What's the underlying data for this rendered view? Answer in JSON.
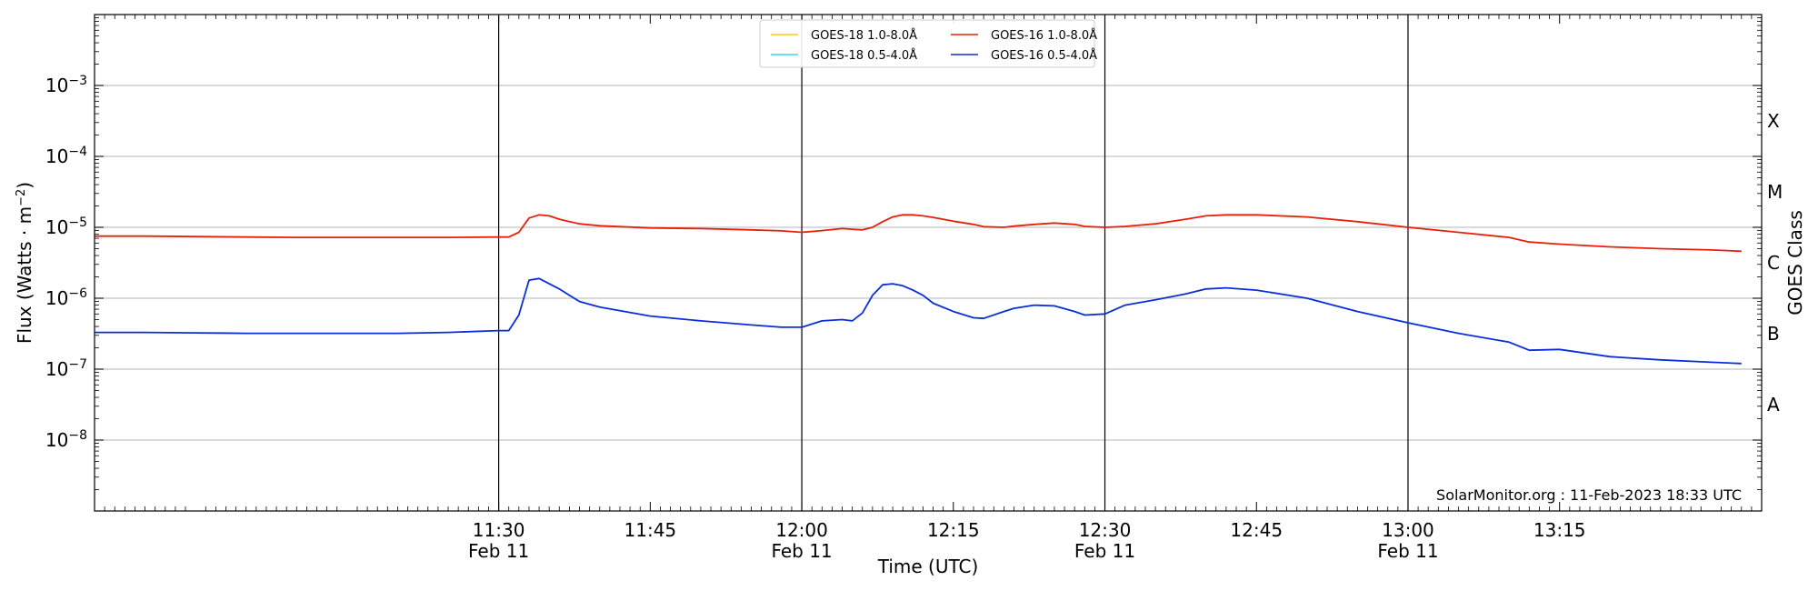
{
  "chart_data": {
    "type": "line",
    "xlabel": "Time (UTC)",
    "ylabel_prefix": "Flux (Watts · m",
    "ylabel_exp": "−2",
    "ylabel_suffix": ")",
    "right_label": "GOES Class",
    "credit": "SolarMonitor.org : 11-Feb-2023 18:33 UTC",
    "y_scale": "log",
    "ylim": [
      1e-09,
      0.01
    ],
    "x_range_minutes": [
      650,
      815
    ],
    "x_ticks": [
      {
        "t": 690,
        "time": "11:30",
        "date": "Feb 11"
      },
      {
        "t": 705,
        "time": "11:45",
        "date": ""
      },
      {
        "t": 720,
        "time": "12:00",
        "date": "Feb 11"
      },
      {
        "t": 735,
        "time": "12:15",
        "date": ""
      },
      {
        "t": 750,
        "time": "12:30",
        "date": "Feb 11"
      },
      {
        "t": 765,
        "time": "12:45",
        "date": ""
      },
      {
        "t": 780,
        "time": "13:00",
        "date": "Feb 11"
      },
      {
        "t": 795,
        "time": "13:15",
        "date": ""
      }
    ],
    "vertical_lines_at": [
      690,
      720,
      750,
      780
    ],
    "y_ticks": [
      {
        "exp": -8,
        "label": "10",
        "sup": "−8"
      },
      {
        "exp": -7,
        "label": "10",
        "sup": "−7"
      },
      {
        "exp": -6,
        "label": "10",
        "sup": "−6"
      },
      {
        "exp": -5,
        "label": "10",
        "sup": "−5"
      },
      {
        "exp": -4,
        "label": "10",
        "sup": "−4"
      },
      {
        "exp": -3,
        "label": "10",
        "sup": "−3"
      }
    ],
    "goes_classes": [
      {
        "label": "A",
        "exp": -7.5
      },
      {
        "label": "B",
        "exp": -6.5
      },
      {
        "label": "C",
        "exp": -5.5
      },
      {
        "label": "M",
        "exp": -4.5
      },
      {
        "label": "X",
        "exp": -3.5
      }
    ],
    "grid": true,
    "legend_position": "top-center",
    "series": [
      {
        "name": "GOES-18 1.0-8.0Å",
        "color": "#f5d000",
        "x": [],
        "y": []
      },
      {
        "name": "GOES-18 0.5-4.0Å",
        "color": "#33d6f5",
        "x": [],
        "y": []
      },
      {
        "name": "GOES-16 1.0-8.0Å",
        "color": "#e8200a",
        "x": [
          650,
          655,
          660,
          665,
          670,
          675,
          680,
          685,
          690,
          691,
          692,
          693,
          694,
          695,
          696,
          697,
          698,
          700,
          705,
          710,
          715,
          718,
          720,
          722,
          724,
          725,
          726,
          727,
          728,
          729,
          730,
          731,
          732,
          733,
          735,
          737,
          738,
          740,
          741,
          743,
          745,
          747,
          748,
          750,
          752,
          755,
          758,
          760,
          762,
          765,
          770,
          775,
          780,
          785,
          790,
          792,
          795,
          800,
          805,
          810,
          813
        ],
        "y": [
          7.5e-06,
          7.5e-06,
          7.4e-06,
          7.3e-06,
          7.2e-06,
          7.2e-06,
          7.2e-06,
          7.2e-06,
          7.3e-06,
          7.3e-06,
          8.5e-06,
          1.35e-05,
          1.5e-05,
          1.45e-05,
          1.3e-05,
          1.2e-05,
          1.12e-05,
          1.05e-05,
          9.8e-06,
          9.6e-06,
          9.2e-06,
          8.9e-06,
          8.5e-06,
          9e-06,
          9.6e-06,
          9.4e-06,
          9.2e-06,
          1e-05,
          1.2e-05,
          1.4e-05,
          1.5e-05,
          1.5e-05,
          1.45e-05,
          1.38e-05,
          1.22e-05,
          1.1e-05,
          1.02e-05,
          1e-05,
          1.04e-05,
          1.1e-05,
          1.15e-05,
          1.1e-05,
          1.03e-05,
          1e-05,
          1.03e-05,
          1.12e-05,
          1.3e-05,
          1.45e-05,
          1.5e-05,
          1.5e-05,
          1.4e-05,
          1.2e-05,
          1e-05,
          8.5e-06,
          7.2e-06,
          6.2e-06,
          5.8e-06,
          5.3e-06,
          5e-06,
          4.8e-06,
          4.6e-06
        ]
      },
      {
        "name": "GOES-16 0.5-4.0Å",
        "color": "#0a2fd8",
        "x": [
          650,
          655,
          660,
          665,
          670,
          675,
          680,
          685,
          690,
          691,
          692,
          693,
          694,
          695,
          696,
          697,
          698,
          700,
          705,
          710,
          715,
          718,
          720,
          722,
          724,
          725,
          726,
          727,
          728,
          729,
          730,
          731,
          732,
          733,
          735,
          737,
          738,
          740,
          741,
          743,
          745,
          747,
          748,
          750,
          752,
          755,
          758,
          760,
          762,
          765,
          770,
          775,
          780,
          785,
          790,
          792,
          795,
          800,
          805,
          810,
          813
        ],
        "y": [
          3.3e-07,
          3.3e-07,
          3.25e-07,
          3.2e-07,
          3.2e-07,
          3.2e-07,
          3.2e-07,
          3.3e-07,
          3.5e-07,
          3.5e-07,
          5.8e-07,
          1.8e-06,
          1.9e-06,
          1.6e-06,
          1.35e-06,
          1.1e-06,
          9e-07,
          7.5e-07,
          5.6e-07,
          4.8e-07,
          4.2e-07,
          3.9e-07,
          3.9e-07,
          4.8e-07,
          5e-07,
          4.8e-07,
          6.2e-07,
          1.1e-06,
          1.55e-06,
          1.6e-06,
          1.5e-06,
          1.3e-06,
          1.1e-06,
          8.5e-07,
          6.5e-07,
          5.3e-07,
          5.2e-07,
          6.5e-07,
          7.2e-07,
          8e-07,
          7.8e-07,
          6.5e-07,
          5.8e-07,
          6e-07,
          8e-07,
          9.5e-07,
          1.15e-06,
          1.35e-06,
          1.4e-06,
          1.3e-06,
          1e-06,
          6.5e-07,
          4.5e-07,
          3.2e-07,
          2.4e-07,
          1.85e-07,
          1.9e-07,
          1.5e-07,
          1.35e-07,
          1.25e-07,
          1.2e-07
        ]
      }
    ]
  }
}
